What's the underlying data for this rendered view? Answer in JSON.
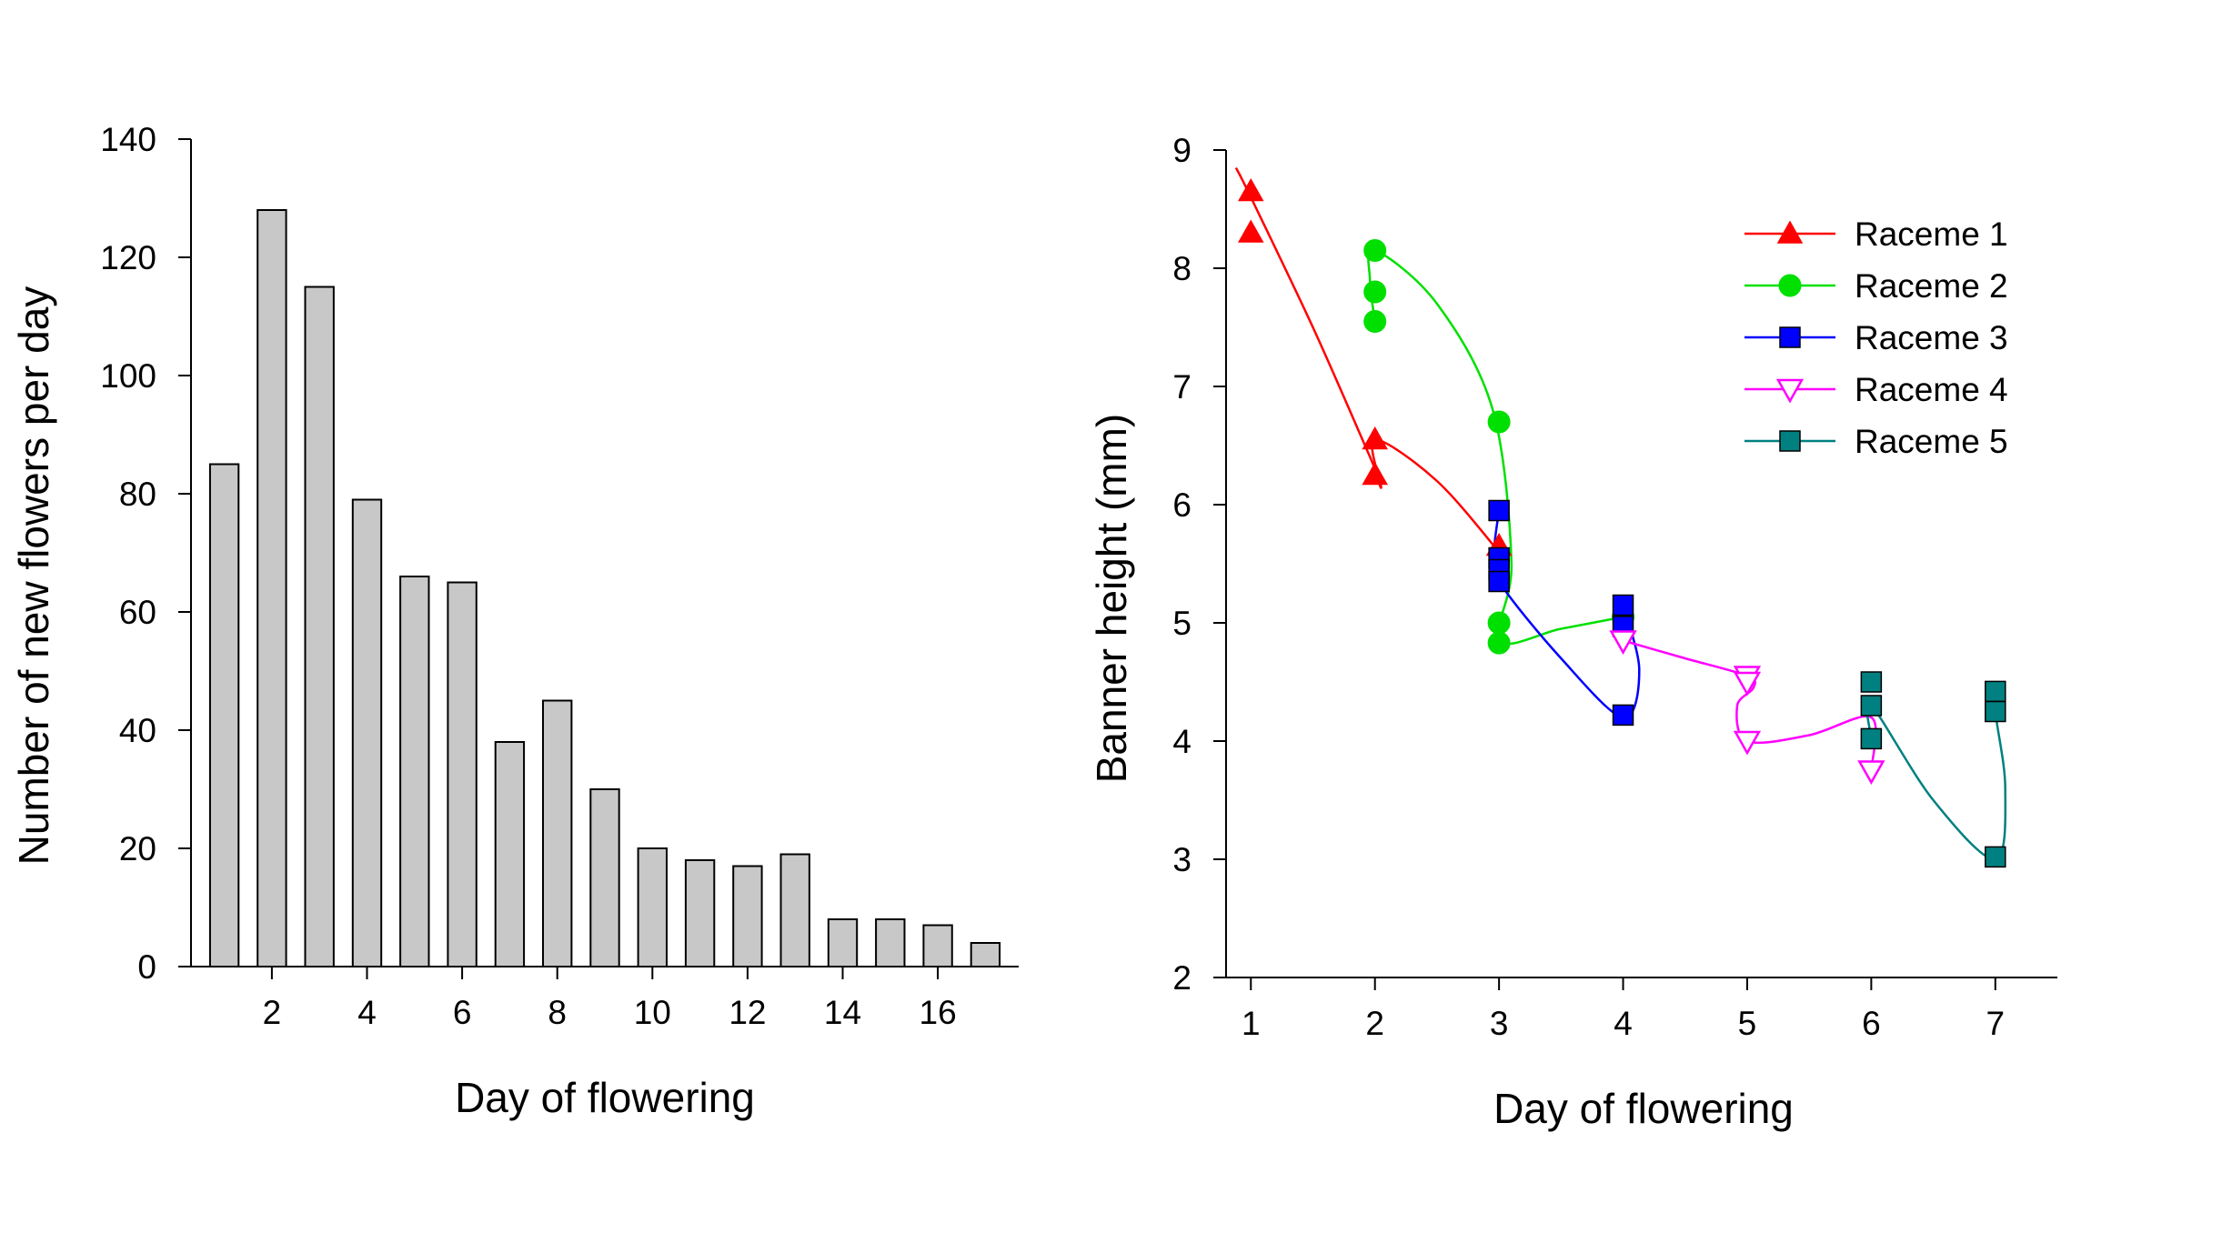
{
  "chart_data": [
    {
      "type": "bar",
      "xlabel": "Day of flowering",
      "ylabel": "Number of new flowers per day",
      "categories": [
        1,
        2,
        3,
        4,
        5,
        6,
        7,
        8,
        9,
        10,
        11,
        12,
        13,
        14,
        15,
        16,
        17
      ],
      "values": [
        85,
        128,
        115,
        79,
        66,
        65,
        38,
        45,
        30,
        20,
        18,
        17,
        19,
        8,
        8,
        7,
        4
      ],
      "xlim": [
        0.3,
        17.7
      ],
      "ylim": [
        0,
        140
      ],
      "xticks": [
        "2",
        "4",
        "6",
        "8",
        "10",
        "12",
        "14",
        "16"
      ],
      "yticks": [
        "0",
        "20",
        "40",
        "60",
        "80",
        "100",
        "120",
        "140"
      ],
      "bar_color": "#c8c8c8",
      "grid": false
    },
    {
      "type": "scatter",
      "xlabel": "Day of flowering",
      "ylabel": "Banner height (mm)",
      "xlim": [
        0.8,
        7.5
      ],
      "ylim": [
        2,
        9
      ],
      "xticks": [
        "1",
        "2",
        "3",
        "4",
        "5",
        "6",
        "7"
      ],
      "yticks": [
        "2",
        "3",
        "4",
        "5",
        "6",
        "7",
        "8",
        "9"
      ],
      "legend_position": "top-right",
      "grid": false,
      "series": [
        {
          "name": "Raceme 1",
          "color": "#ff0000",
          "marker": "triangle-up-filled",
          "points": [
            [
              1,
              8.65
            ],
            [
              1,
              8.3
            ],
            [
              2,
              6.55
            ],
            [
              2,
              6.25
            ],
            [
              3,
              5.65
            ]
          ],
          "curve": [
            [
              0.88,
              8.85
            ],
            [
              1.0,
              8.6
            ],
            [
              1.5,
              7.5
            ],
            [
              1.92,
              6.5
            ],
            [
              2.0,
              6.3
            ],
            [
              2.05,
              6.15
            ],
            [
              2.0,
              6.55
            ],
            [
              2.5,
              6.2
            ],
            [
              3.0,
              5.6
            ]
          ]
        },
        {
          "name": "Raceme 2",
          "color": "#00e000",
          "marker": "circle-filled",
          "points": [
            [
              2,
              8.15
            ],
            [
              2,
              7.8
            ],
            [
              2,
              7.55
            ],
            [
              3,
              6.7
            ],
            [
              3,
              5.0
            ],
            [
              3,
              4.83
            ],
            [
              4,
              5.05
            ]
          ],
          "curve": [
            [
              2.0,
              7.55
            ],
            [
              1.96,
              7.9
            ],
            [
              2.0,
              8.15
            ],
            [
              2.5,
              7.7
            ],
            [
              2.95,
              6.8
            ],
            [
              3.1,
              5.5
            ],
            [
              3.0,
              4.85
            ],
            [
              3.5,
              4.95
            ],
            [
              4.0,
              5.05
            ]
          ]
        },
        {
          "name": "Raceme 3",
          "color": "#0000ff",
          "marker": "square-filled",
          "points": [
            [
              3,
              5.95
            ],
            [
              3,
              5.55
            ],
            [
              3,
              5.45
            ],
            [
              3,
              5.35
            ],
            [
              4,
              5.15
            ],
            [
              4,
              4.97
            ],
            [
              4,
              4.22
            ]
          ],
          "curve": [
            [
              3.0,
              5.95
            ],
            [
              2.96,
              5.6
            ],
            [
              3.0,
              5.35
            ],
            [
              3.5,
              4.7
            ],
            [
              4.0,
              4.2
            ],
            [
              4.13,
              4.6
            ],
            [
              4.0,
              5.15
            ]
          ]
        },
        {
          "name": "Raceme 4",
          "color": "#ff00ff",
          "marker": "triangle-down-open",
          "points": [
            [
              4,
              4.85
            ],
            [
              5,
              4.55
            ],
            [
              5,
              4.5
            ],
            [
              5,
              4.0
            ],
            [
              6,
              3.75
            ]
          ],
          "curve": [
            [
              4.0,
              4.85
            ],
            [
              4.5,
              4.7
            ],
            [
              5.0,
              4.55
            ],
            [
              5.05,
              4.45
            ],
            [
              4.92,
              4.3
            ],
            [
              5.0,
              4.0
            ],
            [
              5.5,
              4.05
            ],
            [
              6.0,
              4.2
            ],
            [
              6.0,
              3.75
            ]
          ]
        },
        {
          "name": "Raceme 5",
          "color": "#008080",
          "marker": "square-filled",
          "points": [
            [
              6,
              4.5
            ],
            [
              6,
              4.3
            ],
            [
              6,
              4.02
            ],
            [
              7,
              4.42
            ],
            [
              7,
              4.25
            ],
            [
              7,
              3.02
            ]
          ],
          "curve": [
            [
              6.0,
              4.02
            ],
            [
              6.0,
              4.3
            ],
            [
              6.5,
              3.5
            ],
            [
              7.0,
              3.0
            ],
            [
              7.08,
              3.6
            ],
            [
              7.0,
              4.25
            ],
            [
              7.0,
              4.5
            ]
          ]
        }
      ]
    }
  ]
}
